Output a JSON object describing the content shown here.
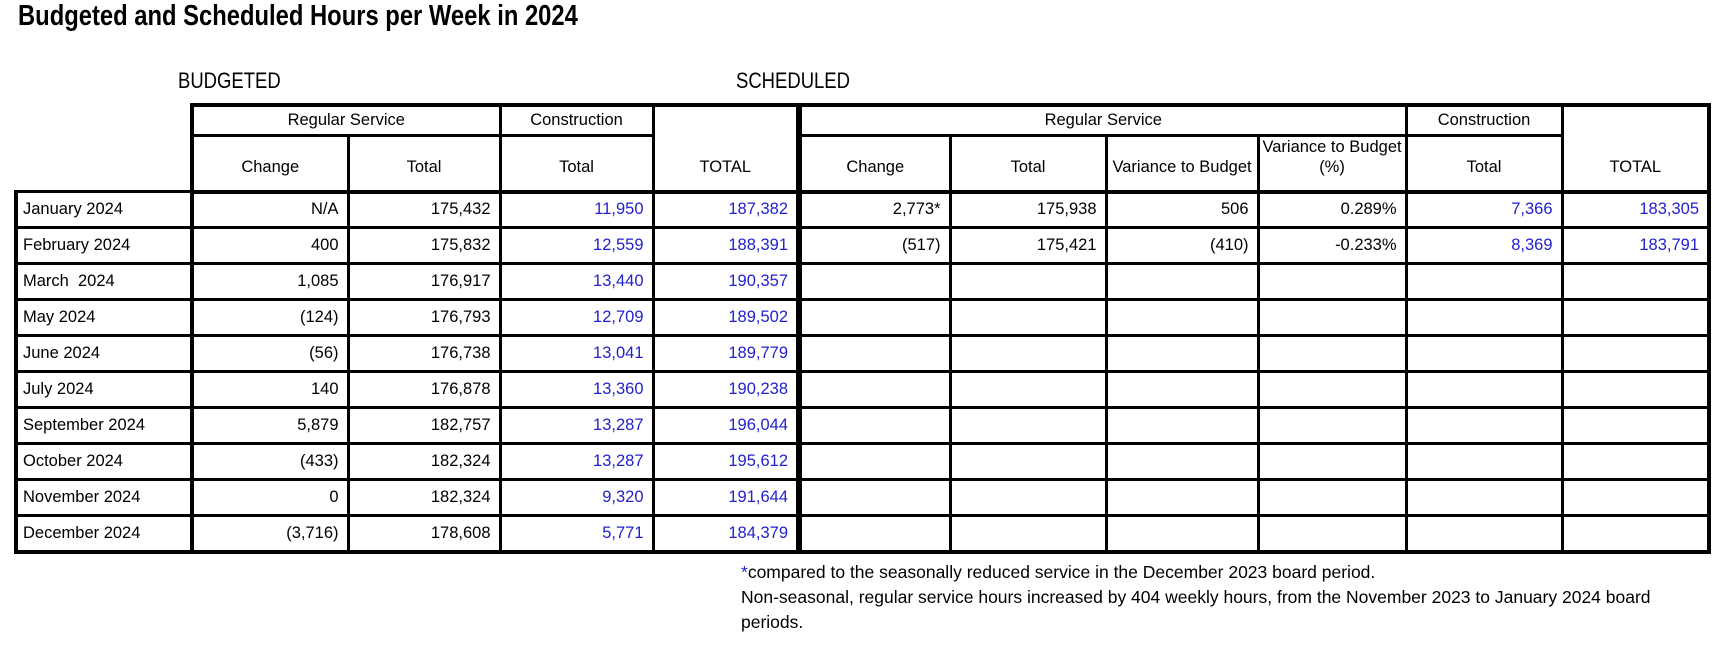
{
  "title": "Budgeted and Scheduled Hours per Week in 2024",
  "colors": {
    "value_blue": "#2222CC",
    "text": "#000000"
  },
  "budgeted": {
    "label": "BUDGETED",
    "regular_service_header": "Regular Service",
    "construction_header": "Construction",
    "total_header": "TOTAL",
    "sub_headers": {
      "change": "Change",
      "total": "Total",
      "construction_total": "Total"
    }
  },
  "scheduled": {
    "label": "SCHEDULED",
    "regular_service_header": "Regular Service",
    "construction_header": "Construction",
    "total_header": "TOTAL",
    "sub_headers": {
      "change": "Change",
      "total": "Total",
      "variance_to_budget": "Variance to Budget",
      "variance_to_budget_pct": "Variance to Budget (%)",
      "construction_total": "Total"
    }
  },
  "footnote": {
    "asterisk": "*",
    "line1": "compared to the seasonally reduced service in the December 2023 board period.",
    "line2": "Non-seasonal, regular service hours increased by 404 weekly hours, from the November 2023 to January 2024 board periods."
  },
  "chart_data": {
    "type": "table",
    "title": "Budgeted and Scheduled Hours per Week in 2024",
    "sections": [
      "BUDGETED",
      "SCHEDULED"
    ],
    "columns": [
      "Month",
      "Budgeted Regular Service Change",
      "Budgeted Regular Service Total",
      "Budgeted Construction Total",
      "Budgeted TOTAL",
      "Scheduled Regular Service Change",
      "Scheduled Regular Service Total",
      "Scheduled Variance to Budget",
      "Scheduled Variance to Budget (%)",
      "Scheduled Construction Total",
      "Scheduled TOTAL"
    ],
    "rows": [
      [
        "January 2024",
        "N/A",
        "175,432",
        "11,950",
        "187,382",
        "2,773*",
        "175,938",
        "506",
        "0.289%",
        "7,366",
        "183,305"
      ],
      [
        "February 2024",
        "400",
        "175,832",
        "12,559",
        "188,391",
        "(517)",
        "175,421",
        "(410)",
        "-0.233%",
        "8,369",
        "183,791"
      ],
      [
        "March  2024",
        "1,085",
        "176,917",
        "13,440",
        "190,357",
        "",
        "",
        "",
        "",
        "",
        ""
      ],
      [
        "May 2024",
        "(124)",
        "176,793",
        "12,709",
        "189,502",
        "",
        "",
        "",
        "",
        "",
        ""
      ],
      [
        "June 2024",
        "(56)",
        "176,738",
        "13,041",
        "189,779",
        "",
        "",
        "",
        "",
        "",
        ""
      ],
      [
        "July 2024",
        "140",
        "176,878",
        "13,360",
        "190,238",
        "",
        "",
        "",
        "",
        "",
        ""
      ],
      [
        "September 2024",
        "5,879",
        "182,757",
        "13,287",
        "196,044",
        "",
        "",
        "",
        "",
        "",
        ""
      ],
      [
        "October 2024",
        "(433)",
        "182,324",
        "13,287",
        "195,612",
        "",
        "",
        "",
        "",
        "",
        ""
      ],
      [
        "November 2024",
        "0",
        "182,324",
        "9,320",
        "191,644",
        "",
        "",
        "",
        "",
        "",
        ""
      ],
      [
        "December 2024",
        "(3,716)",
        "178,608",
        "5,771",
        "184,379",
        "",
        "",
        "",
        "",
        "",
        ""
      ]
    ]
  }
}
